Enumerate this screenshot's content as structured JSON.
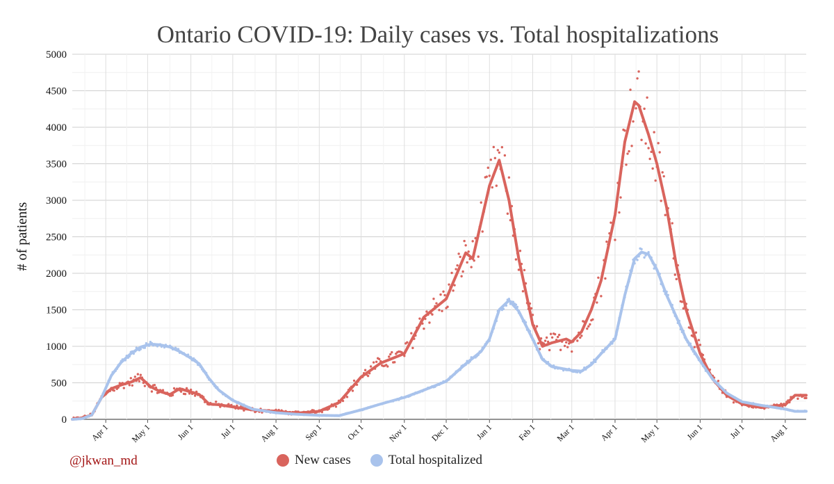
{
  "credit": "@jkwan_md",
  "chart_data": {
    "type": "scatter",
    "title": "Ontario COVID-19: Daily cases vs. Total hospitalizations",
    "ylabel": "# of patients",
    "xlabel": "",
    "ylim": [
      0,
      5000
    ],
    "yticks": [
      0,
      500,
      1000,
      1500,
      2000,
      2500,
      3000,
      3500,
      4000,
      4500,
      5000
    ],
    "xlim": [
      "2020-03-08",
      "2021-08-16"
    ],
    "xtick_labels": [
      "Apr 1",
      "May 1",
      "Jun 1",
      "Jul 1",
      "Aug 1",
      "Sep 1",
      "Oct 1",
      "Nov 1",
      "Dec 1",
      "Jan 1",
      "Feb 1",
      "Mar 1",
      "Apr 1",
      "May 1",
      "Jun 1",
      "Jul 1",
      "Aug 1"
    ],
    "xtick_dates": [
      "2020-04-01",
      "2020-05-01",
      "2020-06-01",
      "2020-07-01",
      "2020-08-01",
      "2020-09-01",
      "2020-10-01",
      "2020-11-01",
      "2020-12-01",
      "2021-01-01",
      "2021-02-01",
      "2021-03-01",
      "2021-04-01",
      "2021-05-01",
      "2021-06-01",
      "2021-07-01",
      "2021-08-01"
    ],
    "grid": true,
    "legend_placement": "bottom",
    "series": [
      {
        "name": "New cases",
        "color": "#d9645d",
        "smoothed": [
          [
            "2020-03-08",
            0
          ],
          [
            "2020-03-15",
            20
          ],
          [
            "2020-03-22",
            60
          ],
          [
            "2020-03-29",
            300
          ],
          [
            "2020-04-05",
            420
          ],
          [
            "2020-04-12",
            470
          ],
          [
            "2020-04-19",
            510
          ],
          [
            "2020-04-26",
            570
          ],
          [
            "2020-05-03",
            450
          ],
          [
            "2020-05-10",
            380
          ],
          [
            "2020-05-17",
            340
          ],
          [
            "2020-05-24",
            420
          ],
          [
            "2020-05-31",
            380
          ],
          [
            "2020-06-07",
            340
          ],
          [
            "2020-06-14",
            210
          ],
          [
            "2020-06-21",
            200
          ],
          [
            "2020-07-01",
            170
          ],
          [
            "2020-07-15",
            130
          ],
          [
            "2020-08-01",
            110
          ],
          [
            "2020-08-15",
            85
          ],
          [
            "2020-09-01",
            110
          ],
          [
            "2020-09-15",
            230
          ],
          [
            "2020-10-01",
            580
          ],
          [
            "2020-10-15",
            770
          ],
          [
            "2020-11-01",
            900
          ],
          [
            "2020-11-15",
            1400
          ],
          [
            "2020-12-01",
            1650
          ],
          [
            "2020-12-15",
            2280
          ],
          [
            "2020-12-20",
            2200
          ],
          [
            "2021-01-01",
            3200
          ],
          [
            "2021-01-08",
            3550
          ],
          [
            "2021-01-15",
            3000
          ],
          [
            "2021-01-22",
            2200
          ],
          [
            "2021-02-01",
            1300
          ],
          [
            "2021-02-08",
            1000
          ],
          [
            "2021-02-15",
            1050
          ],
          [
            "2021-02-25",
            1100
          ],
          [
            "2021-03-01",
            1060
          ],
          [
            "2021-03-08",
            1200
          ],
          [
            "2021-03-15",
            1500
          ],
          [
            "2021-03-22",
            1900
          ],
          [
            "2021-04-01",
            2800
          ],
          [
            "2021-04-08",
            3800
          ],
          [
            "2021-04-15",
            4350
          ],
          [
            "2021-04-18",
            4300
          ],
          [
            "2021-04-25",
            3900
          ],
          [
            "2021-05-01",
            3500
          ],
          [
            "2021-05-08",
            2900
          ],
          [
            "2021-05-15",
            2100
          ],
          [
            "2021-05-22",
            1500
          ],
          [
            "2021-06-01",
            900
          ],
          [
            "2021-06-10",
            550
          ],
          [
            "2021-06-20",
            330
          ],
          [
            "2021-07-01",
            210
          ],
          [
            "2021-07-15",
            160
          ],
          [
            "2021-08-01",
            200
          ],
          [
            "2021-08-08",
            330
          ],
          [
            "2021-08-16",
            330
          ]
        ]
      },
      {
        "name": "Total hospitalized",
        "color": "#a9c3ec",
        "smoothed": [
          [
            "2020-03-08",
            0
          ],
          [
            "2020-03-15",
            10
          ],
          [
            "2020-03-22",
            60
          ],
          [
            "2020-03-29",
            300
          ],
          [
            "2020-04-05",
            600
          ],
          [
            "2020-04-12",
            780
          ],
          [
            "2020-04-19",
            900
          ],
          [
            "2020-04-26",
            990
          ],
          [
            "2020-05-03",
            1030
          ],
          [
            "2020-05-10",
            1020
          ],
          [
            "2020-05-17",
            990
          ],
          [
            "2020-05-24",
            930
          ],
          [
            "2020-05-31",
            850
          ],
          [
            "2020-06-07",
            760
          ],
          [
            "2020-06-14",
            560
          ],
          [
            "2020-06-21",
            400
          ],
          [
            "2020-07-01",
            260
          ],
          [
            "2020-07-15",
            140
          ],
          [
            "2020-08-01",
            90
          ],
          [
            "2020-08-15",
            70
          ],
          [
            "2020-09-01",
            55
          ],
          [
            "2020-09-15",
            50
          ],
          [
            "2020-10-01",
            130
          ],
          [
            "2020-10-15",
            210
          ],
          [
            "2020-11-01",
            300
          ],
          [
            "2020-11-15",
            400
          ],
          [
            "2020-12-01",
            520
          ],
          [
            "2020-12-15",
            760
          ],
          [
            "2020-12-26",
            930
          ],
          [
            "2021-01-01",
            1100
          ],
          [
            "2021-01-08",
            1500
          ],
          [
            "2021-01-15",
            1630
          ],
          [
            "2021-01-22",
            1480
          ],
          [
            "2021-02-01",
            1100
          ],
          [
            "2021-02-08",
            820
          ],
          [
            "2021-02-15",
            720
          ],
          [
            "2021-03-01",
            670
          ],
          [
            "2021-03-08",
            660
          ],
          [
            "2021-03-15",
            750
          ],
          [
            "2021-03-22",
            900
          ],
          [
            "2021-04-01",
            1100
          ],
          [
            "2021-04-08",
            1700
          ],
          [
            "2021-04-15",
            2200
          ],
          [
            "2021-04-20",
            2290
          ],
          [
            "2021-04-25",
            2260
          ],
          [
            "2021-05-01",
            2050
          ],
          [
            "2021-05-08",
            1700
          ],
          [
            "2021-05-15",
            1400
          ],
          [
            "2021-05-22",
            1100
          ],
          [
            "2021-06-01",
            800
          ],
          [
            "2021-06-10",
            550
          ],
          [
            "2021-06-20",
            360
          ],
          [
            "2021-07-01",
            240
          ],
          [
            "2021-07-15",
            190
          ],
          [
            "2021-08-01",
            140
          ],
          [
            "2021-08-08",
            110
          ],
          [
            "2021-08-16",
            110
          ]
        ]
      }
    ]
  }
}
